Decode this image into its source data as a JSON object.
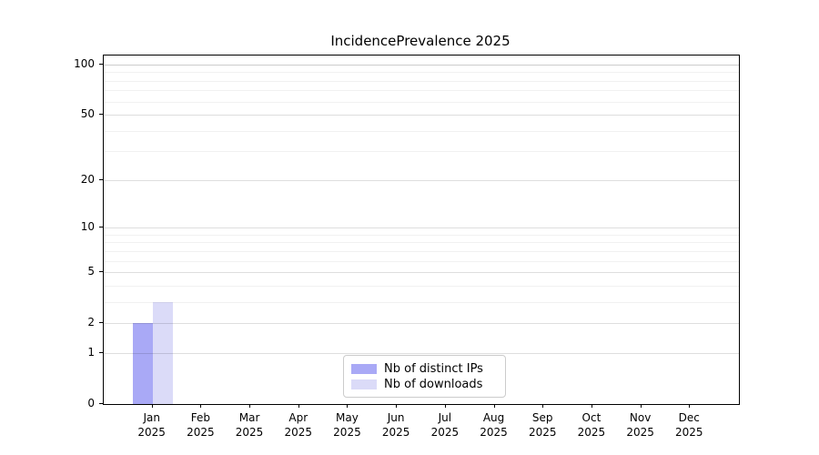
{
  "chart_data": {
    "type": "bar",
    "title": "IncidencePrevalence 2025",
    "categories": [
      {
        "month": "Jan",
        "year": "2025"
      },
      {
        "month": "Feb",
        "year": "2025"
      },
      {
        "month": "Mar",
        "year": "2025"
      },
      {
        "month": "Apr",
        "year": "2025"
      },
      {
        "month": "May",
        "year": "2025"
      },
      {
        "month": "Jun",
        "year": "2025"
      },
      {
        "month": "Jul",
        "year": "2025"
      },
      {
        "month": "Aug",
        "year": "2025"
      },
      {
        "month": "Sep",
        "year": "2025"
      },
      {
        "month": "Oct",
        "year": "2025"
      },
      {
        "month": "Nov",
        "year": "2025"
      },
      {
        "month": "Dec",
        "year": "2025"
      }
    ],
    "series": [
      {
        "name": "Nb of distinct IPs",
        "color": "#a9a9f6",
        "values": [
          2,
          0,
          0,
          0,
          0,
          0,
          0,
          0,
          0,
          0,
          0,
          0
        ]
      },
      {
        "name": "Nb of downloads",
        "color": "#dbdbf8",
        "values": [
          3,
          0,
          0,
          0,
          0,
          0,
          0,
          0,
          0,
          0,
          0,
          0
        ]
      }
    ],
    "yscale": "log1p",
    "ylim": [
      0,
      100
    ],
    "y_major_ticks": [
      0,
      1,
      2,
      5,
      10,
      20,
      50,
      100
    ],
    "y_minor_ticks": [
      3,
      4,
      6,
      7,
      8,
      9,
      30,
      40,
      60,
      70,
      80,
      90
    ],
    "xlabel": "",
    "ylabel": "",
    "grid": "horizontal",
    "legend_position": "bottom-center"
  }
}
